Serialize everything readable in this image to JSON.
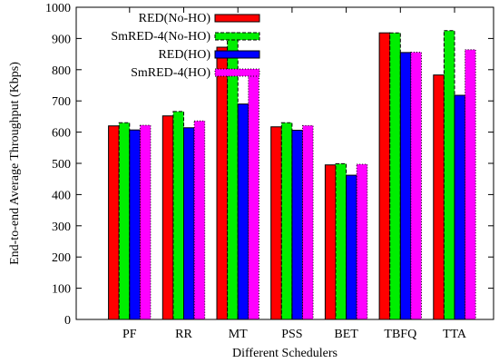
{
  "chart_data": {
    "type": "bar",
    "title": "",
    "xlabel": "Different Schedulers",
    "ylabel": "End-to-end Average Throughput (Kbps)",
    "ylim": [
      0,
      1000
    ],
    "yticks": [
      0,
      100,
      200,
      300,
      400,
      500,
      600,
      700,
      800,
      900,
      1000
    ],
    "categories": [
      "PF",
      "RR",
      "MT",
      "PSS",
      "BET",
      "TBFQ",
      "TTA"
    ],
    "legend_position": "top-right",
    "grid": false,
    "series": [
      {
        "name": "RED(No-HO)",
        "color": "#ff0000",
        "pattern": "solid",
        "values": [
          620,
          652,
          872,
          617,
          495,
          918,
          783
        ]
      },
      {
        "name": "SmRED-4(No-HO)",
        "color": "#00ee00",
        "pattern": "dashed",
        "values": [
          630,
          666,
          918,
          630,
          499,
          918,
          925
        ]
      },
      {
        "name": "RED(HO)",
        "color": "#0000ff",
        "pattern": "solid",
        "values": [
          607,
          614,
          690,
          606,
          462,
          855,
          718
        ]
      },
      {
        "name": "SmRED-4(HO)",
        "color": "#ff00ff",
        "pattern": "dotted",
        "values": [
          622,
          636,
          783,
          621,
          497,
          856,
          864
        ]
      }
    ]
  }
}
